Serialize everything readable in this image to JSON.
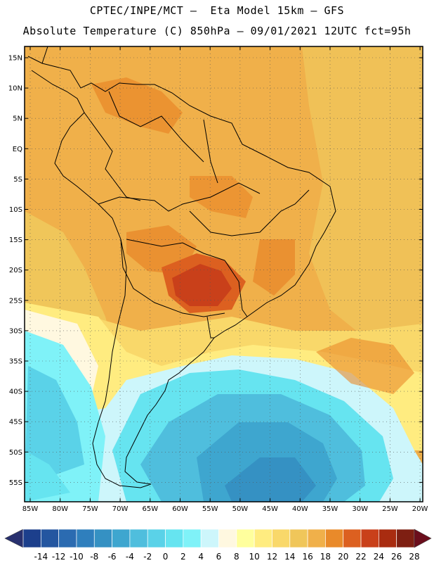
{
  "header": {
    "line1": "CPTEC/INPE/MCT –  Eta Model 15km – GFS",
    "line2": "Absolute Temperature (C) 850hPa – 09/01/2021 12UTC fct=95h"
  },
  "map": {
    "lat_labels": [
      "15N",
      "10N",
      "5N",
      "EQ",
      "5S",
      "10S",
      "15S",
      "20S",
      "25S",
      "30S",
      "35S",
      "40S",
      "45S",
      "50S",
      "55S"
    ],
    "lon_labels": [
      "85W",
      "80W",
      "75W",
      "70W",
      "65W",
      "60W",
      "55W",
      "50W",
      "45W",
      "40W",
      "35W",
      "30W",
      "25W",
      "20W"
    ]
  },
  "colorbar": {
    "labels": [
      "-14",
      "-12",
      "-10",
      "-8",
      "-6",
      "-4",
      "-2",
      "0",
      "2",
      "4",
      "6",
      "8",
      "10",
      "12",
      "14",
      "16",
      "18",
      "20",
      "22",
      "24",
      "26",
      "28"
    ],
    "colors": [
      "#1c3f8c",
      "#2456a0",
      "#2b6bb1",
      "#2f7fbd",
      "#3591c3",
      "#3ea6cf",
      "#4fbedd",
      "#5ad2e8",
      "#66e4f0",
      "#7ff2f8",
      "#cdf6fb",
      "#fff8e0",
      "#ffff9d",
      "#ffec80",
      "#f9d86a",
      "#f0c65a",
      "#f0b04a",
      "#e98a2a",
      "#dc6020",
      "#c9401a",
      "#a92c10",
      "#7e1f12"
    ],
    "arrow_left": "#28306e",
    "arrow_right": "#6b0e1c"
  }
}
